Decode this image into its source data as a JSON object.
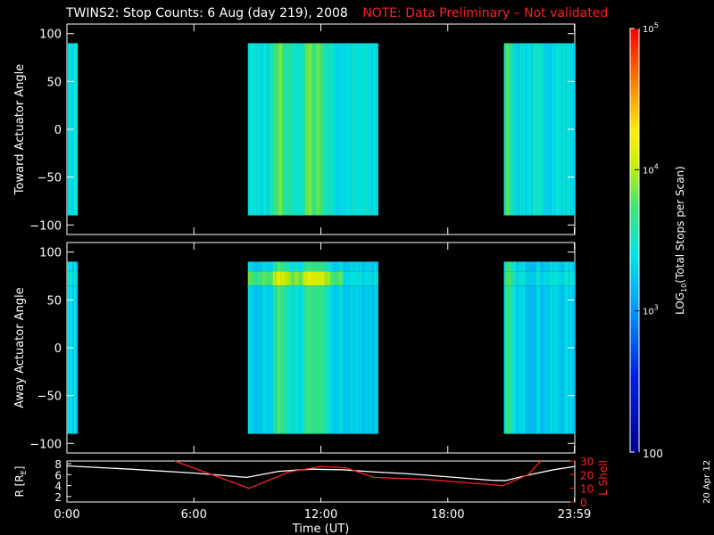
{
  "header": {
    "title": "TWINS2: Stop Counts:  6 Aug (day 219), 2008",
    "note": "NOTE: Data Preliminary – Not validated"
  },
  "date_stamp": "20 Apr 12",
  "colors": {
    "background": "#000000",
    "axes": "#ffffff",
    "note": "#ff2020",
    "lshell": "#ff2020"
  },
  "chart_data": [
    {
      "type": "heatmap",
      "ylabel": "Toward Actuator Angle",
      "ylim": [
        -110,
        110
      ],
      "yticks": [
        "100",
        "50",
        "0",
        "−50",
        "−100"
      ],
      "ytick_values": [
        100,
        50,
        0,
        -50,
        -100
      ],
      "xlim": [
        0,
        24
      ],
      "data_y_range": [
        -90,
        90
      ],
      "intervals": [
        [
          0.0,
          0.45
        ],
        [
          8.55,
          14.65
        ],
        [
          20.65,
          24.0
        ]
      ],
      "bright_bands_hours": [
        10.0,
        11.4,
        11.85,
        20.8
      ],
      "typical_log_counts": 3.4
    },
    {
      "type": "heatmap",
      "ylabel": "Away Actuator Angle",
      "ylim": [
        -110,
        110
      ],
      "yticks": [
        "100",
        "50",
        "0",
        "−50",
        "−100"
      ],
      "ytick_values": [
        100,
        50,
        0,
        -50,
        -100
      ],
      "xlim": [
        0,
        24
      ],
      "data_y_range": [
        -90,
        90
      ],
      "intervals": [
        [
          0.0,
          0.45
        ],
        [
          8.55,
          14.65
        ],
        [
          20.65,
          24.0
        ]
      ],
      "bright_bands_hours": [
        10.0,
        11.4,
        11.85,
        20.8
      ],
      "enhanced_angle_band": [
        65,
        80
      ],
      "typical_log_counts": 3.3
    },
    {
      "type": "line",
      "xlabel": "Time (UT)",
      "xticks": [
        "0:00",
        "6:00",
        "12:00",
        "18:00",
        "23:59"
      ],
      "xtick_values": [
        0,
        6,
        12,
        18,
        23.98
      ],
      "ylabel_left": "R [R",
      "ylabel_left_sub": "E",
      "ylabel_left_end": "]",
      "ylim_left": [
        1,
        8.5
      ],
      "yticks_left": [
        "8",
        "6",
        "4",
        "2"
      ],
      "ylabel_right": "L Shell",
      "ylim_right": [
        0,
        30
      ],
      "yticks_right": [
        "30",
        "20",
        "10",
        "0"
      ],
      "series": [
        {
          "color": "#ffffff",
          "axis": "left",
          "x": [
            0,
            3,
            6,
            8.5,
            10,
            11.5,
            13,
            14.5,
            16,
            18,
            20,
            20.7,
            22,
            23,
            24
          ],
          "y": [
            7.6,
            7.0,
            6.3,
            5.5,
            6.6,
            7.0,
            6.9,
            6.5,
            6.2,
            5.6,
            5.0,
            4.9,
            6.1,
            6.9,
            7.5
          ]
        },
        {
          "color": "#ff2020",
          "axis": "right",
          "x": [
            5.1,
            8.6,
            10.5,
            12,
            13.2,
            14.5,
            17,
            20.6,
            21.8,
            22.4
          ],
          "y": [
            30,
            10,
            22,
            26,
            25,
            18,
            16.5,
            12,
            20,
            30
          ]
        }
      ]
    }
  ],
  "colorbar": {
    "label": "LOG10(Total Stops per Scan)",
    "label_prefix": "LOG",
    "label_sub": "10",
    "label_suffix": "(Total Stops per Scan)",
    "range_log": [
      2,
      5
    ],
    "ticks": [
      {
        "base": "10",
        "exp": "5",
        "value": 5
      },
      {
        "base": "10",
        "exp": "4",
        "value": 4
      },
      {
        "base": "10",
        "exp": "3",
        "value": 3
      },
      {
        "base": "100",
        "exp": "",
        "value": 2
      }
    ]
  }
}
